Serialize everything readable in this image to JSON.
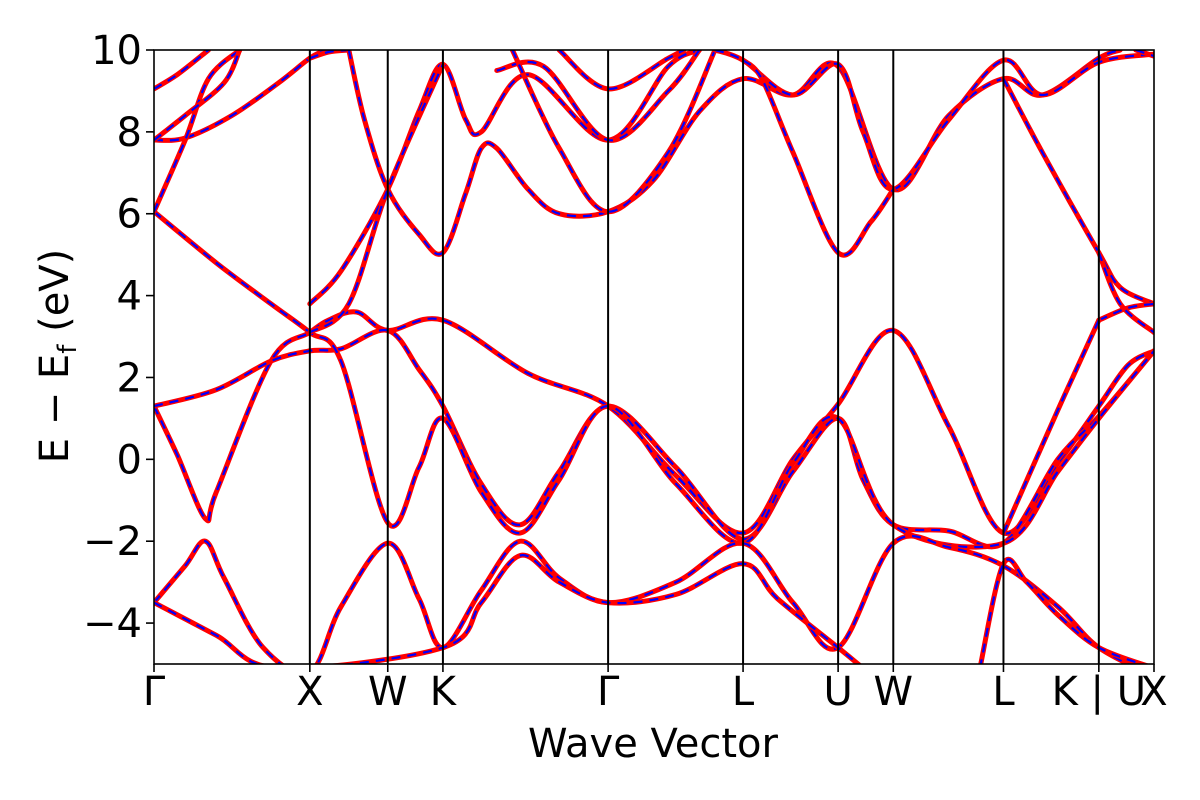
{
  "chart_data": {
    "type": "line",
    "xlabel": "Wave Vector",
    "ylabel": "E − E",
    "ylabel_sub": "f",
    "ylabel_unit": " (eV)",
    "ylim": [
      -5,
      10
    ],
    "yticks": [
      -4,
      -2,
      0,
      2,
      4,
      6,
      8,
      10
    ],
    "ytick_labels": [
      "−4",
      "−2",
      "0",
      "2",
      "4",
      "6",
      "8",
      "10"
    ],
    "kpath": {
      "labels": [
        "Γ",
        "X",
        "W",
        "K",
        "Γ",
        "L",
        "U",
        "W",
        "L",
        "K | U",
        "X"
      ],
      "positions": [
        0.0,
        1.0,
        1.5,
        1.854,
        2.914,
        3.78,
        4.39,
        4.744,
        5.451,
        6.063,
        6.417
      ],
      "xlim": [
        0.0,
        6.417
      ]
    },
    "grid": false,
    "legend": "none",
    "colors": {
      "series_a": "#ff0000",
      "series_b": "#0000ff",
      "kline": "#000000"
    },
    "series": [
      {
        "style": "solid",
        "color": "#ff0000",
        "bands": [
          [
            [
              0.0,
              1.3
            ],
            [
              0.15,
              0.1
            ],
            [
              0.33,
              -1.45
            ],
            [
              0.4,
              -0.8
            ],
            [
              0.75,
              2.4
            ],
            [
              1.0,
              3.1
            ],
            [
              1.12,
              3.4
            ],
            [
              1.3,
              3.6
            ],
            [
              1.5,
              3.15
            ],
            [
              1.854,
              3.4
            ],
            [
              2.4,
              2.1
            ],
            [
              2.914,
              1.3
            ],
            [
              3.35,
              -0.4
            ],
            [
              3.78,
              -1.8
            ],
            [
              4.1,
              0.0
            ],
            [
              4.39,
              1.35
            ],
            [
              4.744,
              3.15
            ],
            [
              5.1,
              0.8
            ],
            [
              5.451,
              -1.8
            ],
            [
              5.8,
              -0.1
            ],
            [
              6.063,
              1.3
            ],
            [
              6.25,
              2.3
            ],
            [
              6.417,
              2.65
            ]
          ],
          [
            [
              0.0,
              1.3
            ],
            [
              0.4,
              1.7
            ],
            [
              0.75,
              2.4
            ],
            [
              1.0,
              2.65
            ],
            [
              1.2,
              2.7
            ],
            [
              1.5,
              3.15
            ],
            [
              1.7,
              2.2
            ],
            [
              1.854,
              1.3
            ],
            [
              2.1,
              -0.6
            ],
            [
              2.35,
              -1.6
            ],
            [
              2.6,
              -0.3
            ],
            [
              2.914,
              1.3
            ],
            [
              3.35,
              -0.2
            ],
            [
              3.78,
              -1.95
            ],
            [
              4.1,
              -0.3
            ],
            [
              4.39,
              1.0
            ],
            [
              4.55,
              -0.5
            ],
            [
              4.744,
              -1.6
            ],
            [
              5.1,
              -1.75
            ],
            [
              5.451,
              -2.05
            ],
            [
              5.8,
              0.0
            ],
            [
              6.063,
              1.05
            ],
            [
              6.417,
              2.65
            ]
          ],
          [
            [
              0.0,
              6.05
            ],
            [
              0.4,
              4.8
            ],
            [
              0.75,
              3.8
            ],
            [
              1.0,
              3.1
            ],
            [
              1.2,
              2.4
            ],
            [
              1.5,
              -1.55
            ],
            [
              1.7,
              -0.2
            ],
            [
              1.854,
              1.0
            ],
            [
              2.1,
              -0.8
            ],
            [
              2.35,
              -1.8
            ],
            [
              2.6,
              -0.5
            ],
            [
              2.914,
              1.3
            ],
            [
              3.35,
              -0.6
            ],
            [
              3.78,
              -2.05
            ],
            [
              4.1,
              -0.1
            ],
            [
              4.39,
              1.0
            ],
            [
              4.744,
              -1.6
            ],
            [
              5.451,
              -2.05
            ],
            [
              5.8,
              -0.3
            ],
            [
              6.063,
              1.0
            ],
            [
              6.417,
              2.65
            ]
          ],
          [
            [
              0.0,
              -3.5
            ],
            [
              0.2,
              -2.6
            ],
            [
              0.33,
              -2.0
            ],
            [
              0.45,
              -2.9
            ],
            [
              0.7,
              -4.6
            ],
            [
              1.0,
              -5.2
            ],
            [
              1.2,
              -3.6
            ],
            [
              1.5,
              -2.05
            ],
            [
              1.7,
              -3.4
            ],
            [
              1.854,
              -4.6
            ],
            [
              2.1,
              -3.2
            ],
            [
              2.35,
              -2.0
            ],
            [
              2.6,
              -2.9
            ],
            [
              2.914,
              -3.5
            ],
            [
              3.35,
              -3.0
            ],
            [
              3.78,
              -2.05
            ],
            [
              4.1,
              -3.5
            ],
            [
              4.39,
              -4.6
            ],
            [
              4.744,
              -2.05
            ],
            [
              5.1,
              -2.15
            ],
            [
              5.451,
              -2.6
            ],
            [
              5.8,
              -3.6
            ],
            [
              6.063,
              -4.6
            ],
            [
              6.417,
              -5.3
            ]
          ],
          [
            [
              0.0,
              -3.5
            ],
            [
              0.4,
              -4.3
            ],
            [
              0.8,
              -5.1
            ],
            [
              1.854,
              -4.6
            ],
            [
              2.1,
              -3.5
            ],
            [
              2.35,
              -2.35
            ],
            [
              2.6,
              -3.0
            ],
            [
              2.914,
              -3.5
            ],
            [
              3.35,
              -3.3
            ],
            [
              3.78,
              -2.55
            ],
            [
              4.0,
              -3.4
            ],
            [
              4.39,
              -4.6
            ],
            [
              4.55,
              -5.1
            ]
          ],
          [
            [
              5.3,
              -5.1
            ],
            [
              5.451,
              -2.55
            ],
            [
              5.6,
              -3.0
            ],
            [
              5.8,
              -3.8
            ],
            [
              6.063,
              -4.6
            ],
            [
              6.417,
              -5.1
            ]
          ],
          [
            [
              0.0,
              7.8
            ],
            [
              0.2,
              7.85
            ],
            [
              0.5,
              8.4
            ],
            [
              0.8,
              9.2
            ],
            [
              1.0,
              9.8
            ],
            [
              1.1,
              10.0
            ]
          ],
          [
            [
              0.0,
              9.05
            ],
            [
              0.15,
              9.4
            ],
            [
              0.35,
              10.0
            ]
          ],
          [
            [
              0.0,
              6.05
            ],
            [
              0.2,
              7.8
            ],
            [
              0.35,
              9.3
            ],
            [
              0.55,
              10.0
            ]
          ],
          [
            [
              0.0,
              7.8
            ],
            [
              0.2,
              8.4
            ],
            [
              0.45,
              9.2
            ],
            [
              0.55,
              10.0
            ]
          ],
          [
            [
              1.0,
              9.8
            ],
            [
              1.12,
              9.95
            ],
            [
              1.25,
              10.0
            ]
          ],
          [
            [
              1.25,
              10.0
            ],
            [
              1.35,
              8.3
            ],
            [
              1.5,
              6.6
            ],
            [
              1.7,
              5.5
            ],
            [
              1.854,
              5.05
            ],
            [
              2.0,
              6.5
            ],
            [
              2.1,
              7.6
            ],
            [
              2.2,
              7.6
            ],
            [
              2.4,
              6.6
            ],
            [
              2.6,
              6.0
            ],
            [
              2.914,
              6.05
            ],
            [
              3.2,
              6.8
            ],
            [
              3.5,
              8.5
            ],
            [
              3.78,
              9.3
            ],
            [
              4.1,
              8.9
            ],
            [
              4.39,
              9.6
            ],
            [
              4.744,
              6.6
            ],
            [
              5.1,
              8.4
            ],
            [
              5.451,
              9.3
            ],
            [
              5.7,
              8.9
            ],
            [
              6.063,
              9.8
            ],
            [
              6.2,
              10.0
            ]
          ],
          [
            [
              1.0,
              3.8
            ],
            [
              1.2,
              4.6
            ],
            [
              1.5,
              6.6
            ],
            [
              1.7,
              8.5
            ],
            [
              1.854,
              9.65
            ],
            [
              2.0,
              8.3
            ],
            [
              2.1,
              8.0
            ],
            [
              2.4,
              9.4
            ],
            [
              2.914,
              7.8
            ],
            [
              3.3,
              9.6
            ],
            [
              3.5,
              10.0
            ]
          ],
          [
            [
              1.0,
              3.1
            ],
            [
              1.25,
              3.8
            ],
            [
              1.5,
              6.6
            ],
            [
              1.854,
              9.65
            ]
          ],
          [
            [
              2.2,
              9.5
            ],
            [
              2.5,
              9.6
            ],
            [
              2.914,
              7.8
            ],
            [
              3.3,
              9.0
            ],
            [
              3.5,
              10.0
            ]
          ],
          [
            [
              2.3,
              10.0
            ],
            [
              2.6,
              7.6
            ],
            [
              2.914,
              6.05
            ],
            [
              3.3,
              7.5
            ],
            [
              3.6,
              10.0
            ]
          ],
          [
            [
              2.6,
              10.0
            ],
            [
              2.914,
              9.05
            ],
            [
              3.3,
              9.8
            ],
            [
              3.4,
              10.0
            ]
          ],
          [
            [
              3.6,
              10.0
            ],
            [
              3.78,
              9.75
            ],
            [
              4.1,
              8.9
            ],
            [
              4.39,
              9.65
            ],
            [
              4.55,
              8.0
            ],
            [
              4.744,
              6.6
            ],
            [
              5.1,
              8.3
            ],
            [
              5.451,
              9.75
            ],
            [
              5.7,
              8.9
            ],
            [
              6.063,
              9.7
            ],
            [
              6.417,
              9.9
            ]
          ],
          [
            [
              3.78,
              9.75
            ],
            [
              3.9,
              9.3
            ],
            [
              4.1,
              7.5
            ],
            [
              4.39,
              5.05
            ],
            [
              4.6,
              5.8
            ],
            [
              4.744,
              6.6
            ]
          ],
          [
            [
              5.451,
              9.3
            ],
            [
              5.7,
              7.5
            ],
            [
              6.063,
              5.05
            ],
            [
              6.2,
              4.2
            ],
            [
              6.417,
              3.8
            ]
          ],
          [
            [
              6.063,
              3.4
            ],
            [
              6.25,
              3.7
            ],
            [
              6.417,
              3.8
            ]
          ],
          [
            [
              5.451,
              -1.8
            ],
            [
              5.8,
              1.2
            ],
            [
              6.063,
              3.4
            ]
          ],
          [
            [
              6.063,
              5.05
            ],
            [
              6.2,
              3.8
            ],
            [
              6.417,
              3.1
            ]
          ],
          [
            [
              6.3,
              10.0
            ],
            [
              6.417,
              9.85
            ]
          ]
        ]
      }
    ]
  }
}
